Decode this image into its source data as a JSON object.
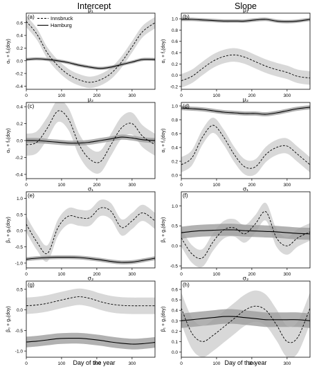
{
  "figure": {
    "column_titles": [
      "Intercept",
      "Slope"
    ],
    "xlabel": "Day of the year",
    "x_ticks": [
      0,
      100,
      200,
      300
    ],
    "x_range": [
      0,
      365
    ]
  },
  "legend": {
    "entries": [
      {
        "label": "Innsbruck",
        "style": "dashed",
        "color": "#000000"
      },
      {
        "label": "Hamburg",
        "style": "solid",
        "color": "#000000"
      }
    ]
  },
  "colors": {
    "innsbruck_band": "#d8d8d8",
    "hamburg_band": "#9e9e9e",
    "line": "#000000",
    "frame": "#000000"
  },
  "chart_data": [
    {
      "type": "line",
      "panel": "(a)",
      "title": "μ₁",
      "ylabel": "α₀ + f₀(doy)",
      "ylim": [
        -0.45,
        0.75
      ],
      "yticks": [
        -0.4,
        -0.2,
        0.0,
        0.2,
        0.4,
        0.6
      ],
      "x": [
        0,
        30,
        60,
        90,
        120,
        150,
        180,
        210,
        240,
        270,
        300,
        330,
        365
      ],
      "series": [
        {
          "name": "Innsbruck",
          "values": [
            0.62,
            0.42,
            0.12,
            -0.08,
            -0.22,
            -0.3,
            -0.34,
            -0.3,
            -0.2,
            -0.02,
            0.22,
            0.46,
            0.6
          ],
          "band": 0.09
        },
        {
          "name": "Hamburg",
          "values": [
            0.02,
            0.03,
            0.02,
            0.0,
            -0.03,
            -0.07,
            -0.1,
            -0.12,
            -0.1,
            -0.06,
            -0.02,
            0.02,
            0.02
          ],
          "band": 0.025
        }
      ]
    },
    {
      "type": "line",
      "panel": "(b)",
      "title": "μ₁",
      "ylabel": "α₁ + f₁(doy)",
      "ylim": [
        -0.25,
        1.1
      ],
      "yticks": [
        -0.2,
        0.0,
        0.2,
        0.4,
        0.6,
        0.8,
        1.0
      ],
      "x": [
        0,
        30,
        60,
        90,
        120,
        150,
        180,
        210,
        240,
        270,
        300,
        330,
        365
      ],
      "series": [
        {
          "name": "Innsbruck",
          "values": [
            -0.1,
            -0.02,
            0.12,
            0.25,
            0.33,
            0.36,
            0.32,
            0.24,
            0.16,
            0.1,
            0.05,
            -0.02,
            -0.05
          ],
          "band": 0.12
        },
        {
          "name": "Hamburg",
          "values": [
            0.99,
            0.99,
            0.98,
            0.97,
            0.96,
            0.96,
            0.96,
            0.98,
            0.99,
            0.96,
            0.95,
            0.96,
            0.99
          ],
          "band": 0.03
        }
      ]
    },
    {
      "type": "line",
      "panel": "(c)",
      "title": "μ₂",
      "ylabel": "α₀ + f₀(doy)",
      "ylim": [
        -0.45,
        0.45
      ],
      "yticks": [
        -0.4,
        -0.2,
        0.0,
        0.2,
        0.4
      ],
      "x": [
        0,
        30,
        60,
        90,
        120,
        150,
        180,
        210,
        240,
        270,
        300,
        330,
        365
      ],
      "series": [
        {
          "name": "Innsbruck",
          "values": [
            -0.05,
            -0.02,
            0.15,
            0.35,
            0.25,
            -0.05,
            -0.22,
            -0.25,
            -0.05,
            0.15,
            0.2,
            0.05,
            -0.05
          ],
          "band": 0.13
        },
        {
          "name": "Hamburg",
          "values": [
            0.0,
            0.0,
            -0.01,
            -0.02,
            -0.03,
            -0.03,
            -0.02,
            0.0,
            0.02,
            0.04,
            0.03,
            0.01,
            0.0
          ],
          "band": 0.03
        }
      ]
    },
    {
      "type": "line",
      "panel": "(d)",
      "title": "μ₂",
      "ylabel": "α₁ + f₁(doy)",
      "ylim": [
        -0.05,
        1.05
      ],
      "yticks": [
        0.0,
        0.2,
        0.4,
        0.6,
        0.8,
        1.0
      ],
      "x": [
        0,
        30,
        60,
        90,
        120,
        150,
        180,
        210,
        240,
        270,
        300,
        330,
        365
      ],
      "series": [
        {
          "name": "Innsbruck",
          "values": [
            0.15,
            0.25,
            0.55,
            0.72,
            0.55,
            0.3,
            0.12,
            0.12,
            0.3,
            0.4,
            0.42,
            0.3,
            0.15
          ],
          "band": 0.11
        },
        {
          "name": "Hamburg",
          "values": [
            0.97,
            0.96,
            0.95,
            0.93,
            0.91,
            0.9,
            0.89,
            0.89,
            0.88,
            0.9,
            0.93,
            0.96,
            0.98
          ],
          "band": 0.03
        }
      ]
    },
    {
      "type": "line",
      "panel": "(e)",
      "title": "σ₁",
      "ylabel": "β₀ + g₀(doy)",
      "ylim": [
        -1.15,
        1.2
      ],
      "yticks": [
        -1.0,
        -0.5,
        0.0,
        0.5,
        1.0
      ],
      "x": [
        0,
        30,
        60,
        90,
        120,
        150,
        180,
        210,
        240,
        270,
        300,
        330,
        365
      ],
      "series": [
        {
          "name": "Innsbruck",
          "values": [
            0.2,
            -0.35,
            -0.7,
            0.1,
            0.45,
            0.4,
            0.4,
            0.7,
            0.6,
            0.1,
            0.3,
            0.55,
            0.3
          ],
          "band": 0.25
        },
        {
          "name": "Hamburg",
          "values": [
            -0.88,
            -0.85,
            -0.83,
            -0.82,
            -0.82,
            -0.83,
            -0.86,
            -0.9,
            -0.95,
            -0.98,
            -0.97,
            -0.92,
            -0.85
          ],
          "band": 0.06
        }
      ]
    },
    {
      "type": "line",
      "panel": "(f)",
      "title": "σ₁",
      "ylabel": "β₁ + g₁(doy)",
      "ylim": [
        -0.55,
        1.35
      ],
      "yticks": [
        -0.5,
        0.0,
        0.5,
        1.0
      ],
      "x": [
        0,
        30,
        60,
        90,
        120,
        150,
        180,
        210,
        240,
        270,
        300,
        330,
        365
      ],
      "series": [
        {
          "name": "Innsbruck",
          "values": [
            0.2,
            -0.2,
            -0.3,
            0.1,
            0.4,
            0.45,
            0.3,
            0.55,
            0.85,
            0.2,
            0.0,
            0.2,
            0.35
          ],
          "band": 0.22
        },
        {
          "name": "Hamburg",
          "values": [
            0.33,
            0.36,
            0.38,
            0.39,
            0.4,
            0.4,
            0.38,
            0.37,
            0.36,
            0.35,
            0.33,
            0.31,
            0.3
          ],
          "band": 0.15
        }
      ]
    },
    {
      "type": "line",
      "panel": "(g)",
      "title": "σ₂",
      "ylabel": "β₀ + g₀(doy)",
      "ylim": [
        -1.15,
        0.7
      ],
      "yticks": [
        -1.0,
        -0.5,
        0.0,
        0.5
      ],
      "x": [
        0,
        30,
        60,
        90,
        120,
        150,
        180,
        210,
        240,
        270,
        300,
        330,
        365
      ],
      "series": [
        {
          "name": "Innsbruck",
          "values": [
            0.1,
            0.12,
            0.16,
            0.22,
            0.28,
            0.32,
            0.28,
            0.2,
            0.14,
            0.11,
            0.1,
            0.1,
            0.1
          ],
          "band": 0.2
        },
        {
          "name": "Hamburg",
          "values": [
            -0.78,
            -0.76,
            -0.73,
            -0.7,
            -0.69,
            -0.69,
            -0.71,
            -0.74,
            -0.78,
            -0.81,
            -0.83,
            -0.82,
            -0.79
          ],
          "band": 0.13
        }
      ]
    },
    {
      "type": "line",
      "panel": "(h)",
      "title": "σ₂",
      "ylabel": "β₁ + g₁(doy)",
      "ylim": [
        -0.05,
        0.68
      ],
      "yticks": [
        0.0,
        0.1,
        0.2,
        0.3,
        0.4,
        0.5,
        0.6
      ],
      "x": [
        0,
        30,
        60,
        90,
        120,
        150,
        180,
        210,
        240,
        270,
        300,
        330,
        365
      ],
      "series": [
        {
          "name": "Innsbruck",
          "values": [
            0.42,
            0.18,
            0.1,
            0.16,
            0.24,
            0.32,
            0.4,
            0.44,
            0.4,
            0.26,
            0.1,
            0.14,
            0.42
          ],
          "band": 0.15
        },
        {
          "name": "Hamburg",
          "values": [
            0.3,
            0.31,
            0.32,
            0.33,
            0.34,
            0.34,
            0.33,
            0.32,
            0.31,
            0.31,
            0.31,
            0.31,
            0.3
          ],
          "band": 0.07
        }
      ]
    }
  ]
}
